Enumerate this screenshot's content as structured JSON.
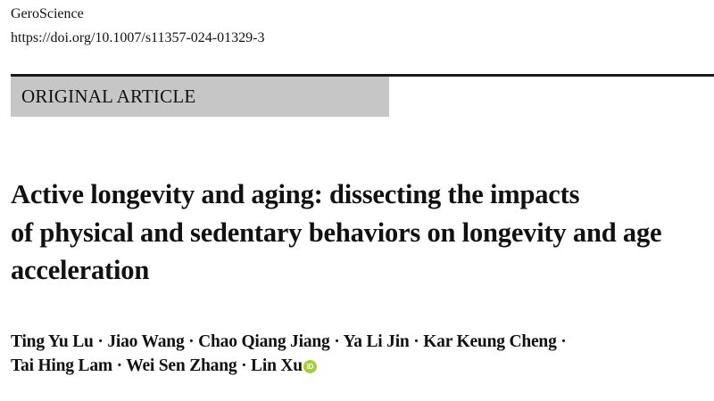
{
  "header": {
    "journal": "GeroScience",
    "doi": "https://doi.org/10.1007/s11357-024-01329-3"
  },
  "article_type": "ORIGINAL ARTICLE",
  "title_lines": [
    "Active longevity and aging: dissecting the impacts",
    "of physical and sedentary behaviors on longevity and age",
    "acceleration"
  ],
  "authors": {
    "line1": "Ting Yu Lu · Jiao Wang · Chao Qiang Jiang · Ya Li Jin · Kar Keung Cheng ·",
    "line2": "Tai Hing Lam · Wei Sen Zhang · Lin Xu",
    "orcid_icon": "orcid-icon",
    "orcid_color": "#a6ce39",
    "orcid_glyph": "iD"
  },
  "colors": {
    "type_box": "#c6c6c6",
    "rule": "#1a1a1a"
  }
}
